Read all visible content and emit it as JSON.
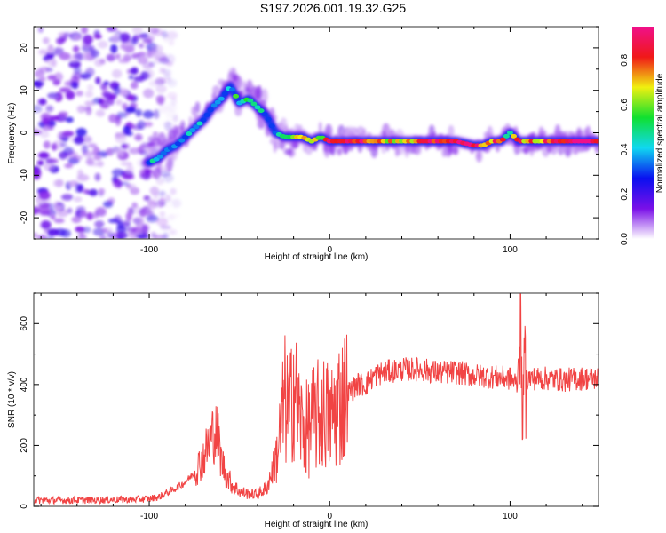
{
  "title": "S197.2026.001.19.32.G25",
  "chart_data": [
    {
      "type": "heatmap",
      "name": "spectrogram",
      "xlabel": "Height of straight line (km)",
      "ylabel": "Frequency (Hz)",
      "xlim": [
        -164,
        149
      ],
      "ylim": [
        -25,
        25
      ],
      "xticks": [
        -100,
        0,
        100
      ],
      "xtick_labels": [
        "-100",
        "0",
        "100"
      ],
      "yticks": [
        -20,
        -10,
        0,
        10,
        20
      ],
      "ytick_labels": [
        "-20",
        "-10",
        "0",
        "10",
        "20"
      ],
      "colorbar": {
        "label": "Normalized spectral amplitude",
        "range": [
          0.0,
          0.95
        ],
        "ticks": [
          0.0,
          0.2,
          0.4,
          0.6,
          0.8
        ],
        "tick_labels": [
          "0.0",
          "0.2",
          "0.4",
          "0.6",
          "0.8"
        ],
        "colormap": [
          "#ffffff",
          "#7a10e8",
          "#0a10f0",
          "#10d8f0",
          "#10e030",
          "#f0f010",
          "#f01818",
          "#f0108a"
        ]
      },
      "ridge": {
        "description": "Dominant frequency ridge vs. height",
        "x": [
          -100,
          -95,
          -90,
          -85,
          -80,
          -75,
          -70,
          -65,
          -60,
          -55,
          -50,
          -45,
          -40,
          -35,
          -30,
          -25,
          -20,
          -15,
          -10,
          -5,
          0,
          10,
          20,
          30,
          40,
          50,
          60,
          70,
          80,
          85,
          90,
          95,
          100,
          105,
          110,
          120,
          130,
          140,
          149
        ],
        "y": [
          -7,
          -6,
          -4,
          -3,
          -1,
          1,
          3,
          6,
          8,
          11,
          7,
          8,
          6,
          4,
          0,
          -1,
          -1,
          -1,
          -2,
          -1,
          -2,
          -2,
          -2,
          -2,
          -2,
          -2,
          -2,
          -2,
          -3,
          -3,
          -2,
          -2,
          0,
          -2,
          -2,
          -2,
          -2,
          -2,
          -2
        ],
        "amplitude": [
          0.35,
          0.4,
          0.4,
          0.35,
          0.35,
          0.35,
          0.3,
          0.3,
          0.35,
          0.4,
          0.45,
          0.45,
          0.4,
          0.3,
          0.3,
          0.4,
          0.55,
          0.8,
          0.7,
          0.6,
          0.85,
          0.9,
          0.85,
          0.7,
          0.6,
          0.7,
          0.85,
          0.85,
          0.85,
          0.8,
          0.75,
          0.8,
          0.4,
          0.8,
          0.7,
          0.75,
          0.85,
          0.9,
          0.9
        ]
      },
      "noise_region": {
        "x_range": [
          -164,
          -95
        ],
        "y_range": [
          -25,
          25
        ],
        "amplitude": 0.2
      }
    },
    {
      "type": "line",
      "name": "snr",
      "xlabel": "Height of straight line (km)",
      "ylabel": "SNR (10 * v/v)",
      "xlim": [
        -164,
        149
      ],
      "ylim": [
        0,
        700
      ],
      "xticks": [
        -100,
        0,
        100
      ],
      "xtick_labels": [
        "-100",
        "0",
        "100"
      ],
      "yticks": [
        0,
        200,
        400,
        600
      ],
      "ytick_labels": [
        "0",
        "200",
        "400",
        "600"
      ],
      "color": "#f03030",
      "series": [
        {
          "name": "SNR",
          "x": [
            -164,
            -150,
            -140,
            -130,
            -120,
            -110,
            -100,
            -95,
            -90,
            -85,
            -80,
            -75,
            -70,
            -66,
            -64,
            -62,
            -60,
            -57,
            -54,
            -50,
            -45,
            -40,
            -35,
            -30,
            -27,
            -25,
            -22,
            -20,
            -18,
            -15,
            -12,
            -10,
            -8,
            -5,
            -2,
            0,
            5,
            10,
            15,
            20,
            25,
            30,
            40,
            50,
            60,
            70,
            80,
            90,
            100,
            104,
            106,
            107,
            108,
            110,
            120,
            130,
            140,
            149
          ],
          "y": [
            20,
            20,
            20,
            20,
            22,
            22,
            25,
            30,
            45,
            60,
            80,
            110,
            160,
            220,
            250,
            230,
            150,
            100,
            70,
            50,
            40,
            40,
            60,
            150,
            250,
            350,
            300,
            420,
            320,
            260,
            250,
            280,
            290,
            300,
            310,
            280,
            340,
            370,
            400,
            400,
            430,
            440,
            450,
            450,
            440,
            440,
            430,
            425,
            420,
            400,
            650,
            180,
            420,
            420,
            420,
            415,
            420,
            420
          ]
        }
      ]
    }
  ]
}
